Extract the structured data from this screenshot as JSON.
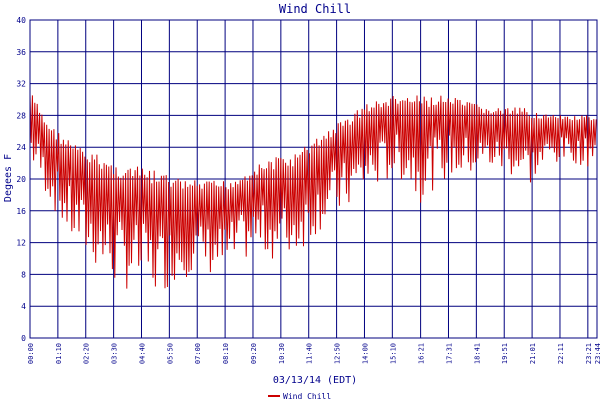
{
  "colors": {
    "title": "#00008b",
    "axis_label": "#00008b",
    "grid": "#00007f",
    "series": "#cc0000",
    "background": "#ffffff"
  },
  "chart_data": {
    "type": "line",
    "title": "Wind Chill",
    "xlabel": "03/13/14 (EDT)",
    "ylabel": "Degees F",
    "ylim": [
      0,
      40
    ],
    "y_ticks": [
      "0",
      "4",
      "8",
      "12",
      "16",
      "20",
      "24",
      "28",
      "32",
      "36",
      "40"
    ],
    "x_ticks": [
      "00:00",
      "01:10",
      "02:20",
      "03:30",
      "04:40",
      "05:50",
      "07:00",
      "08:10",
      "09:20",
      "10:30",
      "11:40",
      "12:50",
      "14:00",
      "15:10",
      "16:21",
      "17:31",
      "18:41",
      "19:51",
      "21:01",
      "22:11",
      "23:21",
      "23:44"
    ],
    "grid": true,
    "legend_position": "bottom-left",
    "series": [
      {
        "name": "Wind Chill",
        "x_range": [
          "00:00",
          "23:44"
        ],
        "upper_envelope": [
          [
            "00:00",
            31.2
          ],
          [
            "00:40",
            27.5
          ],
          [
            "01:10",
            26.0
          ],
          [
            "01:40",
            25.0
          ],
          [
            "02:20",
            23.5
          ],
          [
            "03:00",
            23.0
          ],
          [
            "03:30",
            22.0
          ],
          [
            "04:00",
            21.8
          ],
          [
            "04:40",
            21.5
          ],
          [
            "05:20",
            21.0
          ],
          [
            "05:50",
            20.5
          ],
          [
            "06:20",
            20.0
          ],
          [
            "07:00",
            19.8
          ],
          [
            "07:40",
            19.8
          ],
          [
            "08:10",
            19.9
          ],
          [
            "08:45",
            20.5
          ],
          [
            "09:20",
            21.5
          ],
          [
            "10:00",
            22.5
          ],
          [
            "10:30",
            23.0
          ],
          [
            "11:00",
            23.0
          ],
          [
            "11:40",
            24.5
          ],
          [
            "12:20",
            26.0
          ],
          [
            "12:50",
            27.0
          ],
          [
            "13:20",
            28.0
          ],
          [
            "14:00",
            29.5
          ],
          [
            "14:40",
            30.0
          ],
          [
            "15:10",
            30.5
          ],
          [
            "15:45",
            30.5
          ],
          [
            "16:21",
            30.5
          ],
          [
            "17:00",
            30.5
          ],
          [
            "17:31",
            30.5
          ],
          [
            "18:00",
            30.0
          ],
          [
            "18:41",
            29.5
          ],
          [
            "19:15",
            29.0
          ],
          [
            "19:51",
            29.0
          ],
          [
            "20:30",
            29.0
          ],
          [
            "21:01",
            28.8
          ],
          [
            "21:40",
            28.2
          ],
          [
            "22:11",
            28.0
          ],
          [
            "22:45",
            28.0
          ],
          [
            "23:21",
            28.0
          ],
          [
            "23:44",
            27.5
          ]
        ],
        "lower_envelope": [
          [
            "00:00",
            22.0
          ],
          [
            "00:40",
            18.0
          ],
          [
            "01:10",
            15.0
          ],
          [
            "01:40",
            12.0
          ],
          [
            "02:20",
            10.0
          ],
          [
            "03:00",
            8.0
          ],
          [
            "03:30",
            6.5
          ],
          [
            "04:00",
            6.0
          ],
          [
            "04:40",
            6.0
          ],
          [
            "05:20",
            5.0
          ],
          [
            "05:50",
            6.5
          ],
          [
            "06:20",
            7.5
          ],
          [
            "07:00",
            8.0
          ],
          [
            "07:40",
            7.8
          ],
          [
            "08:10",
            7.5
          ],
          [
            "08:45",
            9.0
          ],
          [
            "09:20",
            10.5
          ],
          [
            "10:00",
            10.0
          ],
          [
            "10:30",
            9.5
          ],
          [
            "11:00",
            10.0
          ],
          [
            "11:40",
            12.0
          ],
          [
            "12:20",
            14.0
          ],
          [
            "12:50",
            15.0
          ],
          [
            "13:20",
            16.0
          ],
          [
            "14:00",
            18.0
          ],
          [
            "14:40",
            19.0
          ],
          [
            "15:10",
            20.0
          ],
          [
            "15:45",
            19.5
          ],
          [
            "16:21",
            17.0
          ],
          [
            "17:00",
            19.0
          ],
          [
            "17:31",
            20.0
          ],
          [
            "18:00",
            20.0
          ],
          [
            "18:41",
            20.5
          ],
          [
            "19:15",
            21.0
          ],
          [
            "19:51",
            20.5
          ],
          [
            "20:30",
            20.0
          ],
          [
            "21:01",
            19.0
          ],
          [
            "21:40",
            21.5
          ],
          [
            "22:11",
            22.0
          ],
          [
            "22:45",
            22.0
          ],
          [
            "23:21",
            21.5
          ],
          [
            "23:44",
            23.5
          ]
        ]
      }
    ]
  }
}
